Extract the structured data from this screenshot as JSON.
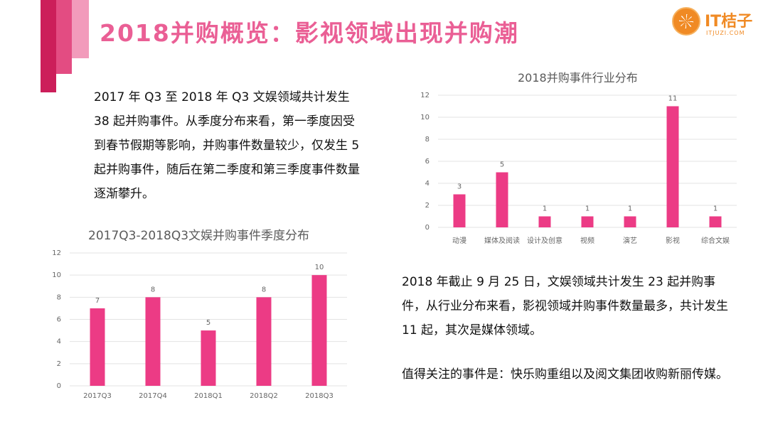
{
  "header": {
    "title": "2018并购概览：影视领域出现并购潮",
    "logo_name": "IT桔子",
    "logo_sub": "ITJUZI.COM"
  },
  "text": {
    "para1": "2017 年 Q3 至 2018 年 Q3 文娱领域共计发生38 起并购事件。从季度分布来看，第一季度因受到春节假期等影响，并购事件数量较少，仅发生 5 起并购事件，随后在第二季度和第三季度事件数量逐渐攀升。",
    "para2": "2018 年截止 9 月 25 日，文娱领域共计发生 23 起并购事件，从行业分布来看，影视领域并购事件数量最多，共计发生 11 起，其次是媒体领域。",
    "para3": "值得关注的事件是：快乐购重组以及阅文集团收购新丽传媒。"
  },
  "colors": {
    "bar": "#ec3b85",
    "grid": "#e3e3e3",
    "accent": "#ea5f95"
  },
  "chart_data": [
    {
      "type": "bar",
      "title": "2017Q3-2018Q3文娱并购事件季度分布",
      "categories": [
        "2017Q3",
        "2017Q4",
        "2018Q1",
        "2018Q2",
        "2018Q3"
      ],
      "values": [
        7,
        8,
        5,
        8,
        10
      ],
      "ylim": [
        0,
        12
      ],
      "yticks": [
        0,
        2,
        4,
        6,
        8,
        10,
        12
      ],
      "grid": true
    },
    {
      "type": "bar",
      "title": "2018并购事件行业分布",
      "categories": [
        "动漫",
        "媒体及阅读",
        "设计及创意",
        "视频",
        "演艺",
        "影视",
        "综合文娱"
      ],
      "values": [
        3,
        5,
        1,
        1,
        1,
        11,
        1
      ],
      "ylim": [
        0,
        12
      ],
      "yticks": [
        0,
        2,
        4,
        6,
        8,
        10,
        12
      ],
      "grid": true
    }
  ]
}
